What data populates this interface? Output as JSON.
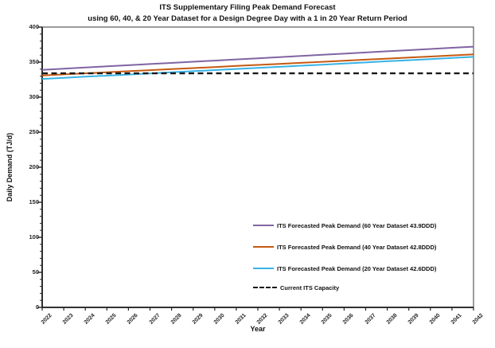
{
  "title": "ITS Supplementary Filing Peak Demand Forecast",
  "subtitle": "using 60, 40, & 20 Year Dataset for a Design Degree Day with a 1 in 20 Year Return Period",
  "chart_data": {
    "type": "line",
    "x": [
      2022,
      2023,
      2024,
      2025,
      2026,
      2027,
      2028,
      2029,
      2030,
      2031,
      2032,
      2033,
      2034,
      2035,
      2036,
      2037,
      2038,
      2039,
      2040,
      2041,
      2042
    ],
    "xlabel": "Year",
    "ylabel": "Daily Demand (TJ/d)",
    "ylim": [
      0,
      400
    ],
    "yticks": [
      0,
      50,
      100,
      150,
      200,
      250,
      300,
      350,
      400
    ],
    "y_minor_step": 10,
    "grid": false,
    "legend_position": "inside-right",
    "series": [
      {
        "name": "ITS Forecasted Peak Demand (60 Year Dataset 43.9DDD)",
        "color": "#8064A2",
        "style": "solid",
        "values": [
          339.0,
          340.7,
          342.3,
          344.0,
          345.6,
          347.3,
          348.9,
          350.6,
          352.2,
          353.9,
          355.5,
          357.2,
          358.8,
          360.5,
          362.1,
          363.8,
          365.4,
          367.1,
          368.7,
          370.4,
          372.0
        ]
      },
      {
        "name": "ITS Forecasted Peak Demand (40 Year Dataset 42.8DDD)",
        "color": "#C55A11",
        "style": "solid",
        "values": [
          331.0,
          332.5,
          334.0,
          335.5,
          337.0,
          338.5,
          340.0,
          341.5,
          343.0,
          344.5,
          346.0,
          347.5,
          349.0,
          350.5,
          352.0,
          353.5,
          355.0,
          356.5,
          358.0,
          359.5,
          361.0
        ]
      },
      {
        "name": "ITS Forecasted Peak Demand (20 Year Dataset 42.6DDD)",
        "color": "#38B3E6",
        "style": "solid",
        "values": [
          326.0,
          327.6,
          329.2,
          330.7,
          332.3,
          333.9,
          335.4,
          337.0,
          338.6,
          340.2,
          341.7,
          343.3,
          344.9,
          346.4,
          348.0,
          349.6,
          351.2,
          352.7,
          354.3,
          355.9,
          357.5
        ]
      },
      {
        "name": "Current ITS Capacity",
        "color": "#1A1A1A",
        "style": "dashed",
        "values": [
          334,
          334,
          334,
          334,
          334,
          334,
          334,
          334,
          334,
          334,
          334,
          334,
          334,
          334,
          334,
          334,
          334,
          334,
          334,
          334,
          334
        ]
      }
    ]
  }
}
